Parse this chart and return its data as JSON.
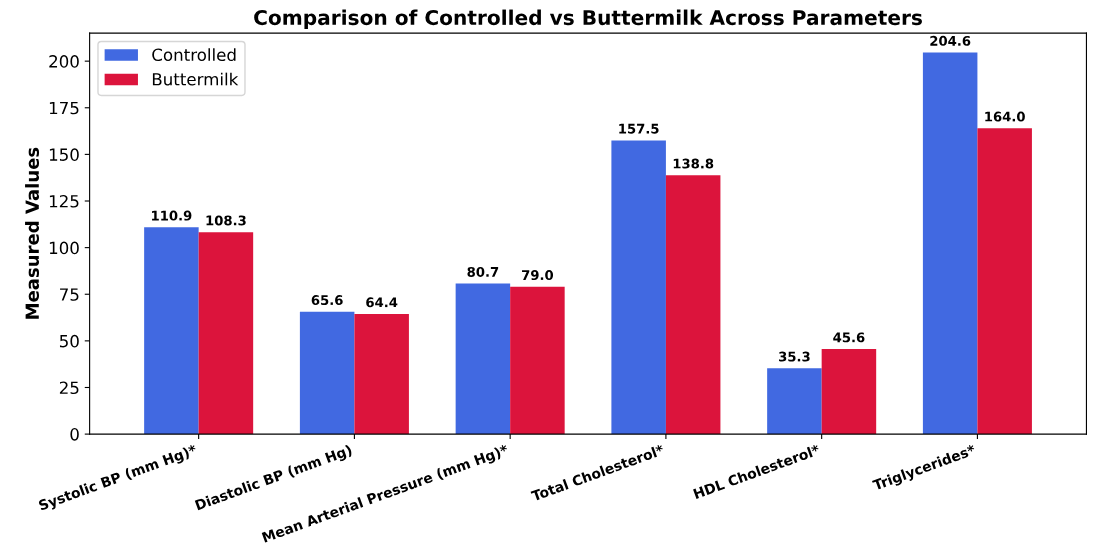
{
  "chart_data": {
    "type": "bar",
    "title": "Comparison of Controlled vs Buttermilk Across Parameters",
    "ylabel": "Measured Values",
    "categories": [
      "Systolic BP (mm Hg)*",
      "Diastolic BP (mm Hg)",
      "Mean Arterial Pressure (mm Hg)*",
      "Total Cholesterol*",
      "HDL Cholesterol*",
      "Triglycerides*"
    ],
    "series": [
      {
        "name": "Controlled",
        "color": "#4169e1",
        "values": [
          110.9,
          65.6,
          80.7,
          157.5,
          35.3,
          204.6
        ],
        "value_labels": [
          "110.9",
          "65.6",
          "80.7",
          "157.5",
          "35.3",
          "204.6"
        ]
      },
      {
        "name": "Buttermilk",
        "color": "#dc143c",
        "values": [
          108.3,
          64.4,
          79.0,
          138.8,
          45.6,
          164.0
        ],
        "value_labels": [
          "108.3",
          "64.4",
          "79.0",
          "138.8",
          "45.6",
          "164.0"
        ]
      }
    ],
    "ylim": [
      0,
      215
    ],
    "yticks": [
      0,
      25,
      50,
      75,
      100,
      125,
      150,
      175,
      200
    ],
    "legend": "top left",
    "grid": false
  }
}
